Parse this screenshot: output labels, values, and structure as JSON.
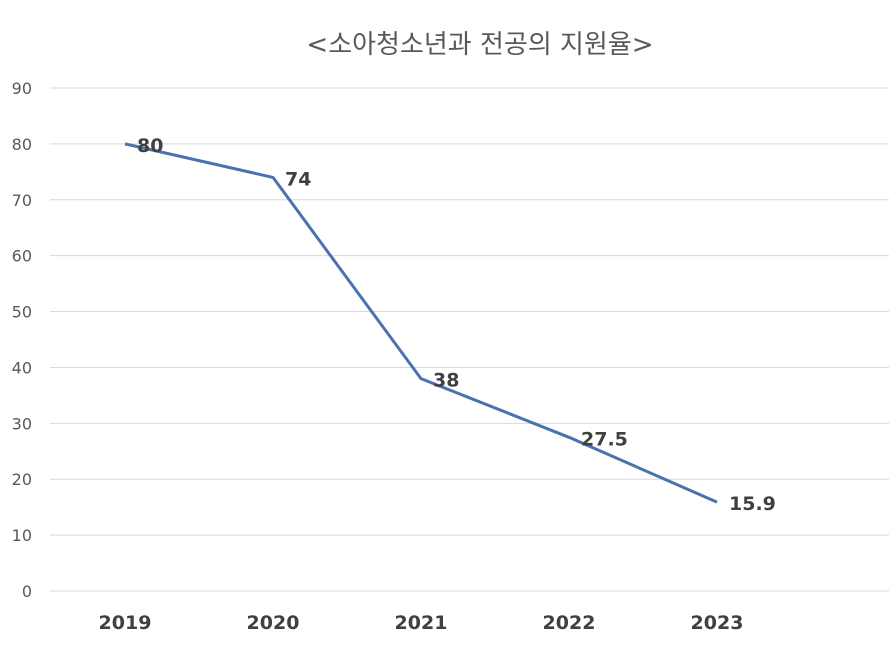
{
  "chart_data": {
    "type": "line",
    "title": "<소아청소년과 전공의 지원율>",
    "xlabel": "",
    "ylabel": "",
    "categories": [
      "2019",
      "2020",
      "2021",
      "2022",
      "2023"
    ],
    "series": [
      {
        "values": [
          80,
          74,
          38,
          27.5,
          15.9
        ],
        "color": "#4a72b0"
      }
    ],
    "ylim": [
      0,
      90
    ],
    "yticks": [
      0,
      10,
      20,
      30,
      40,
      50,
      60,
      70,
      80,
      90
    ],
    "grid": true,
    "legend": "none"
  }
}
